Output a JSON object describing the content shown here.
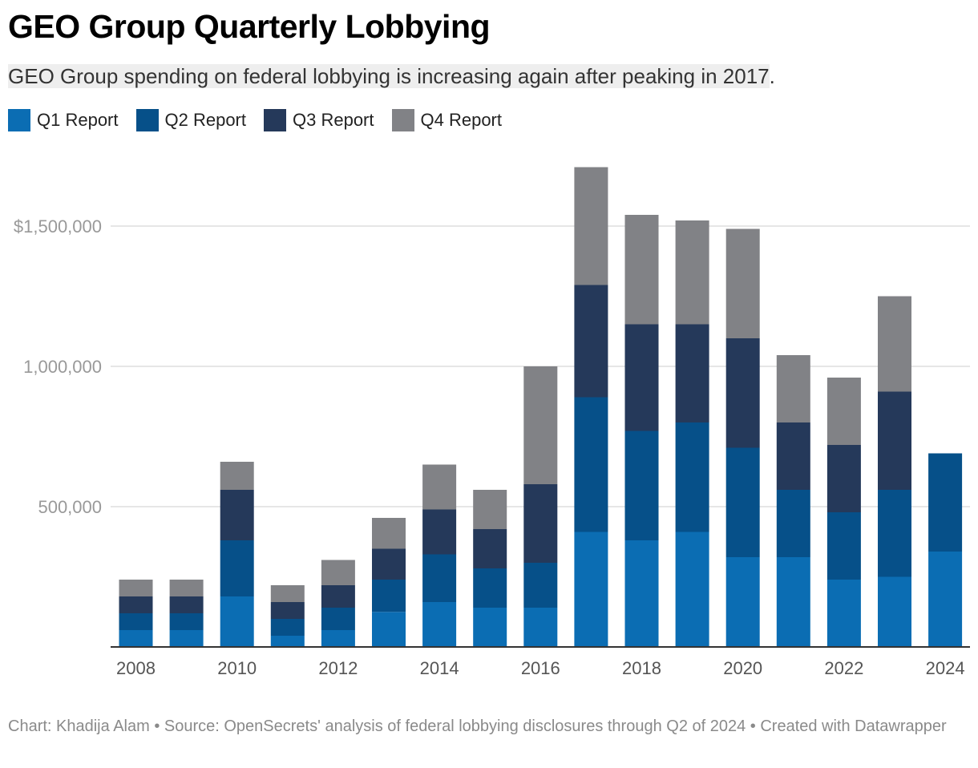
{
  "title": "GEO Group Quarterly Lobbying",
  "subtitle_main": "GEO Group spending on federal lobbying is increasing again after peaking in 2017",
  "subtitle_end": ".",
  "footer": "Chart: Khadija Alam • Source: OpenSecrets' analysis of federal lobbying disclosures through Q2 of 2024 • Created with Datawrapper",
  "colors": {
    "Q1 Report": "#0b6db3",
    "Q2 Report": "#065089",
    "Q3 Report": "#25395a",
    "Q4 Report": "#818286",
    "gridline": "#dddddd",
    "axis": "#333333"
  },
  "chart_data": {
    "type": "bar",
    "stacked": true,
    "categories": [
      "2008",
      "2009",
      "2010",
      "2011",
      "2012",
      "2013",
      "2014",
      "2015",
      "2016",
      "2017",
      "2018",
      "2019",
      "2020",
      "2021",
      "2022",
      "2023",
      "2024"
    ],
    "x_tick_labels": [
      "2008",
      "2010",
      "2012",
      "2014",
      "2016",
      "2018",
      "2020",
      "2022",
      "2024"
    ],
    "y_ticks": [
      {
        "value": 500000,
        "label": "500,000"
      },
      {
        "value": 1000000,
        "label": "1,000,000"
      },
      {
        "value": 1500000,
        "label": "$1,500,000"
      }
    ],
    "ylim": [
      0,
      1700000
    ],
    "grid": true,
    "legend_position": "top-left",
    "series": [
      {
        "name": "Q1 Report",
        "values": [
          60000,
          60000,
          180000,
          40000,
          60000,
          125000,
          160000,
          140000,
          140000,
          410000,
          380000,
          410000,
          320000,
          320000,
          240000,
          250000,
          340000
        ]
      },
      {
        "name": "Q2 Report",
        "values": [
          60000,
          60000,
          200000,
          60000,
          80000,
          115000,
          170000,
          140000,
          160000,
          480000,
          390000,
          390000,
          390000,
          240000,
          240000,
          310000,
          350000
        ]
      },
      {
        "name": "Q3 Report",
        "values": [
          60000,
          60000,
          180000,
          60000,
          80000,
          110000,
          160000,
          140000,
          280000,
          400000,
          380000,
          350000,
          390000,
          240000,
          240000,
          350000,
          0
        ]
      },
      {
        "name": "Q4 Report",
        "values": [
          60000,
          60000,
          100000,
          60000,
          90000,
          110000,
          160000,
          140000,
          420000,
          420000,
          390000,
          370000,
          390000,
          240000,
          240000,
          340000,
          0
        ]
      }
    ]
  }
}
